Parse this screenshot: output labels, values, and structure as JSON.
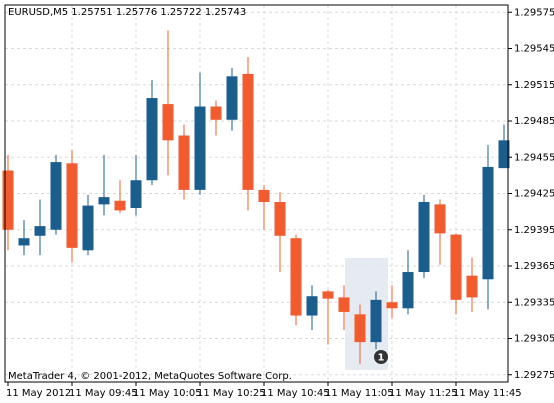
{
  "chart_data": {
    "type": "candlestick",
    "title": "EURUSD,M5  1.25751 1.25776 1.25722 1.25743",
    "footer": "MetaTrader 4, © 2001-2012, MetaQuotes Software Corp.",
    "annotation": "1",
    "categories": [
      "11 May 2012",
      null,
      null,
      null,
      "11 May 09:45",
      null,
      null,
      null,
      "11 May 10:05",
      null,
      null,
      null,
      "11 May 10:25",
      null,
      null,
      null,
      "11 May 10:45",
      null,
      null,
      null,
      "11 May 11:05",
      null,
      null,
      null,
      "11 May 11:25",
      null,
      null,
      null,
      "11 May 11:45",
      null,
      null,
      null
    ],
    "open": [
      1.29444,
      1.29382,
      1.2939,
      1.29395,
      1.2945,
      1.29378,
      1.29416,
      1.29419,
      1.29413,
      1.29436,
      1.29499,
      1.29473,
      1.29428,
      1.29497,
      1.29486,
      1.29524,
      1.29428,
      1.29418,
      1.29388,
      1.29324,
      1.29344,
      1.29339,
      1.29325,
      1.29302,
      1.29335,
      1.2933,
      1.2936,
      1.29416,
      1.29391,
      1.29357,
      1.29354,
      1.29446
    ],
    "high": [
      1.29457,
      1.29403,
      1.2942,
      1.29457,
      1.29461,
      1.29424,
      1.29457,
      1.29436,
      1.29457,
      1.29519,
      1.2956,
      1.29482,
      1.29525,
      1.29502,
      1.29529,
      1.29538,
      1.29432,
      1.29426,
      1.29391,
      1.29349,
      1.29345,
      1.29349,
      1.29333,
      1.29344,
      1.29349,
      1.29378,
      1.29424,
      1.2942,
      1.29392,
      1.29372,
      1.29465,
      1.29482
    ],
    "low": [
      1.29378,
      1.29374,
      1.29374,
      1.29391,
      1.29368,
      1.29374,
      1.29407,
      1.29409,
      1.29407,
      1.29432,
      1.2944,
      1.2942,
      1.29424,
      1.29473,
      1.29477,
      1.29411,
      1.29395,
      1.2936,
      1.29316,
      1.29312,
      1.293,
      1.29312,
      1.29284,
      1.29296,
      1.29322,
      1.29325,
      1.29355,
      1.29366,
      1.29325,
      1.29327,
      1.29329,
      1.29446
    ],
    "close": [
      1.29395,
      1.29388,
      1.29398,
      1.29451,
      1.2938,
      1.29415,
      1.29422,
      1.29411,
      1.29436,
      1.29504,
      1.29469,
      1.29428,
      1.29497,
      1.29486,
      1.29522,
      1.29428,
      1.29418,
      1.2939,
      1.29324,
      1.2934,
      1.29338,
      1.29327,
      1.29302,
      1.29337,
      1.2933,
      1.2936,
      1.29418,
      1.29392,
      1.29337,
      1.29339,
      1.29447,
      1.29469
    ],
    "up_color": "#1b5e8e",
    "down_color": "#f25b2d",
    "ylim": [
      1.29269,
      1.29581
    ],
    "yticks": [
      1.29575,
      1.29545,
      1.29515,
      1.29485,
      1.29455,
      1.29425,
      1.29395,
      1.29365,
      1.29335,
      1.29305,
      1.29275
    ],
    "grid": true
  }
}
